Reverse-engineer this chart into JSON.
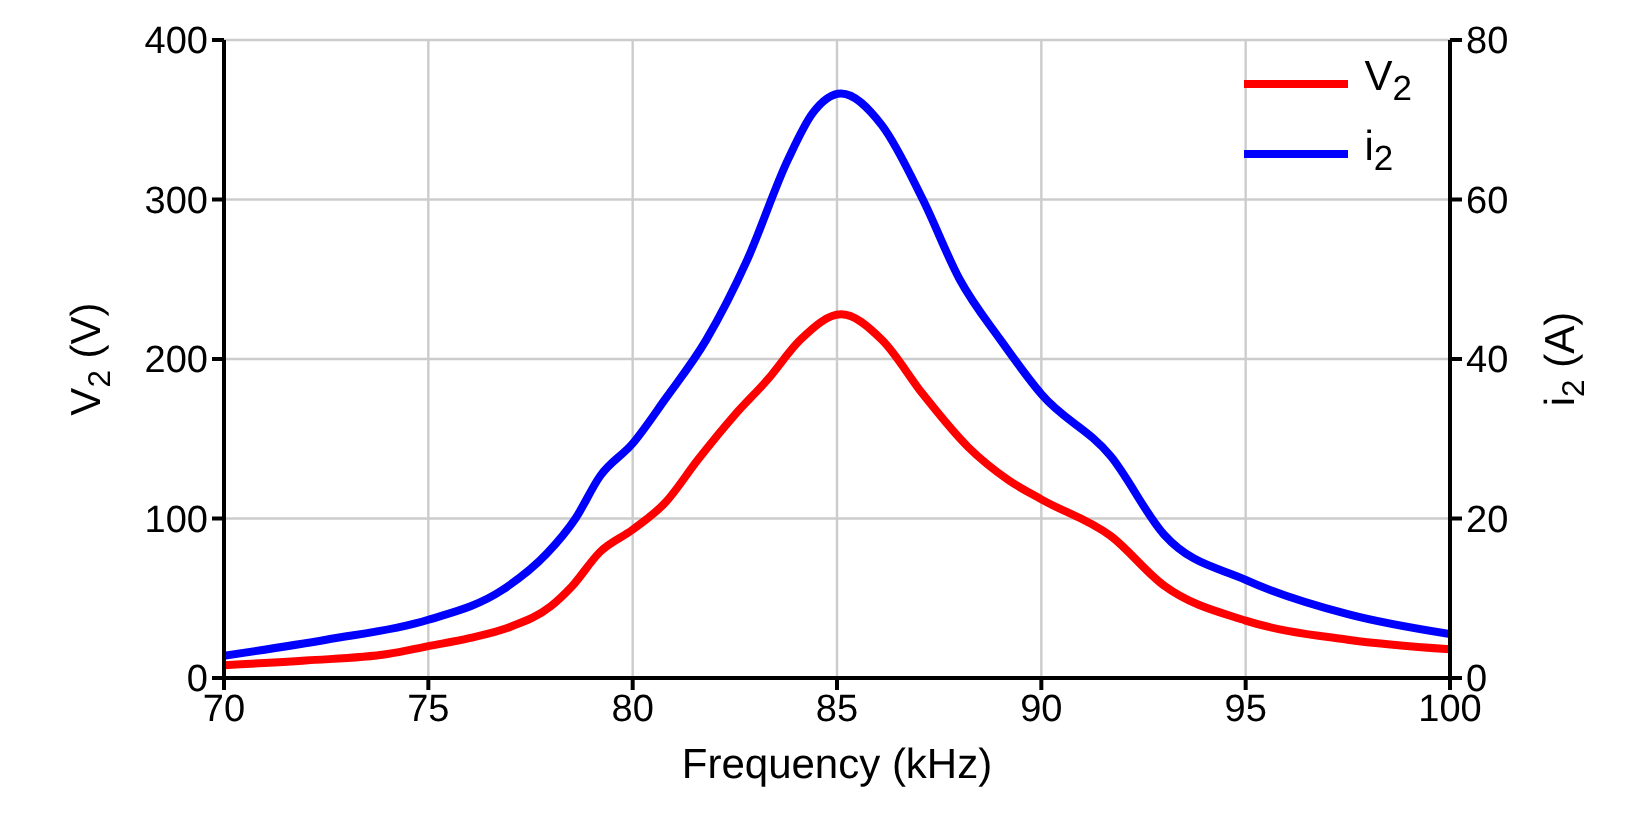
{
  "chart_data": {
    "type": "line",
    "xlabel": "Frequency (kHz)",
    "ylabel": "V$_{2}$ (V)",
    "y2label": "i$_{2}$ (A)",
    "xlim": [
      70,
      100
    ],
    "xticks": [
      70,
      75,
      80,
      85,
      90,
      95,
      100
    ],
    "ylim": [
      0,
      400
    ],
    "yticks": [
      0,
      100,
      200,
      300,
      400
    ],
    "y2lim": [
      0,
      80
    ],
    "y2ticks": [
      0,
      20,
      40,
      60,
      80
    ],
    "grid": true,
    "legend": "top right",
    "marker": "none",
    "line_style": "solid",
    "series": [
      {
        "name": "V$_{2}$",
        "color": "#ff0000",
        "x": [
          70,
          72,
          74,
          75,
          76,
          77,
          78,
          78.5,
          79.2,
          80,
          80.8,
          81.6,
          82.5,
          83.3,
          84.1,
          85.1,
          86.1,
          87.1,
          88.2,
          89.2,
          90,
          91.7,
          93,
          95,
          97.5,
          100
        ],
        "values": [
          8,
          11,
          15,
          20,
          25,
          32,
          45,
          57,
          79,
          93,
          110,
          137,
          165,
          187,
          212,
          228,
          212,
          178,
          145,
          124,
          112,
          89,
          58,
          36,
          24,
          18
        ]
      },
      {
        "name": "i$_{2}$",
        "color": "#0000ff",
        "axis": "y2",
        "x": [
          70,
          72.5,
          75,
          76.8,
          77.9,
          78.6,
          79.2,
          80,
          80.8,
          81.8,
          82.8,
          83.8,
          84.4,
          85.1,
          86.1,
          87.1,
          88,
          89,
          90,
          91.7,
          93,
          95,
          97.5,
          100
        ],
        "values": [
          2.8,
          4.8,
          7.3,
          11,
          15.6,
          20,
          25.3,
          29.4,
          35,
          42.4,
          52.4,
          65,
          70.8,
          73.3,
          69.3,
          60,
          50,
          42.4,
          35.6,
          27.8,
          18,
          12.3,
          8,
          5.5
        ]
      }
    ]
  }
}
